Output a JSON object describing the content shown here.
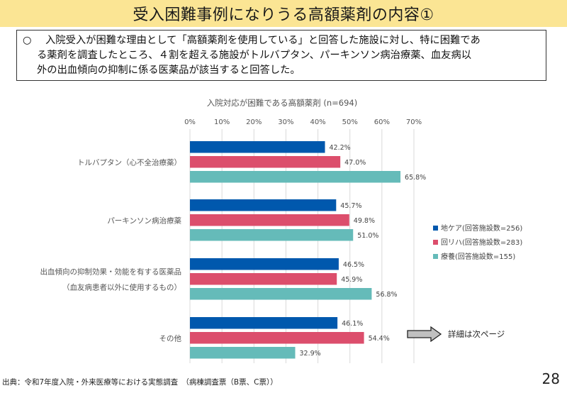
{
  "page": {
    "title": "受入困難事例になりうる高額薬剤の内容①",
    "summary_bullet": "○",
    "summary_lines": [
      "入院受入が困難な理由として「高額薬剤を使用している」と回答した施設に対し、特に困難であ",
      "る薬剤を調査したところ、４割を超える施設がトルバプタン、パーキンソン病治療薬、血友病以",
      "外の出血傾向の抑制に係る医薬品が該当すると回答した。"
    ],
    "arrow_note": "詳細は次ページ",
    "source": "出典：令和7年度入院・外来医療等における実態調査　（病棟調査票（B票、C票））",
    "page_number": "28",
    "icons": {
      "arrow": "right-arrow-icon"
    }
  },
  "chart_data": {
    "type": "bar",
    "orientation": "horizontal",
    "title": "入院対応が困難である高額薬剤 (n=694)",
    "xlabel": "",
    "ylabel": "",
    "xlim": [
      0,
      70
    ],
    "x_ticks": [
      "0%",
      "10%",
      "20%",
      "30%",
      "40%",
      "50%",
      "60%",
      "70%"
    ],
    "x_tick_values": [
      0,
      10,
      20,
      30,
      40,
      50,
      60,
      70
    ],
    "grid": true,
    "legend_position": "right",
    "categories": [
      [
        "トルバプタン（心不全治療薬）"
      ],
      [
        "パーキンソン病治療薬"
      ],
      [
        "出血傾向の抑制効果・効能を有する医薬品",
        "（血友病患者以外に使用するもの）"
      ],
      [
        "その他"
      ]
    ],
    "series": [
      {
        "name": "地ケア(回答施設数=256)",
        "color": "#0058ad",
        "values": [
          42.2,
          45.7,
          46.5,
          46.1
        ]
      },
      {
        "name": "回リハ(回答施設数=283)",
        "color": "#dc4e6c",
        "values": [
          47.0,
          49.8,
          45.9,
          54.4
        ]
      },
      {
        "name": "療養(回答施設数=155)",
        "color": "#65bbb9",
        "values": [
          65.8,
          51.0,
          56.8,
          32.9
        ]
      }
    ],
    "value_suffix": "%"
  }
}
